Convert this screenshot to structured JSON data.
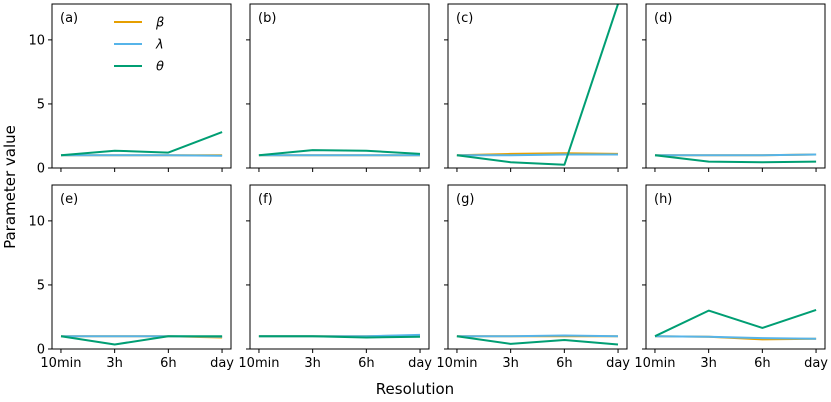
{
  "chart_data": {
    "type": "line",
    "xlabel": "Resolution",
    "ylabel": "Parameter value",
    "categories": [
      "10min",
      "3h",
      "6h",
      "day"
    ],
    "yticks": [
      0,
      5,
      10
    ],
    "ylim": [
      0,
      12.8
    ],
    "legend": {
      "placement": "top-left of panel (a)",
      "entries": [
        {
          "key": "beta",
          "label": "β"
        },
        {
          "key": "lambda",
          "label": "λ"
        },
        {
          "key": "theta",
          "label": "θ"
        }
      ]
    },
    "colors": {
      "beta": "#E69F00",
      "lambda": "#56B4E9",
      "theta": "#009E73"
    },
    "panels": [
      {
        "label": "(a)",
        "series": {
          "beta": [
            1.0,
            1.0,
            1.0,
            1.0
          ],
          "lambda": [
            1.0,
            1.0,
            1.0,
            0.95
          ],
          "theta": [
            1.0,
            1.35,
            1.2,
            2.8
          ]
        }
      },
      {
        "label": "(b)",
        "series": {
          "beta": [
            1.0,
            1.0,
            1.0,
            1.0
          ],
          "lambda": [
            1.0,
            1.0,
            1.0,
            1.0
          ],
          "theta": [
            1.0,
            1.4,
            1.35,
            1.1
          ]
        }
      },
      {
        "label": "(c)",
        "series": {
          "beta": [
            1.0,
            1.1,
            1.15,
            1.1
          ],
          "lambda": [
            1.0,
            1.0,
            1.05,
            1.05
          ],
          "theta": [
            1.0,
            0.45,
            0.25,
            12.8
          ]
        }
      },
      {
        "label": "(d)",
        "series": {
          "beta": [
            1.0,
            1.0,
            1.0,
            1.05
          ],
          "lambda": [
            1.0,
            1.0,
            1.0,
            1.05
          ],
          "theta": [
            1.0,
            0.5,
            0.45,
            0.5
          ]
        }
      },
      {
        "label": "(e)",
        "series": {
          "beta": [
            1.0,
            1.0,
            1.0,
            0.9
          ],
          "lambda": [
            1.0,
            1.0,
            1.0,
            0.95
          ],
          "theta": [
            1.0,
            0.35,
            1.0,
            1.0
          ]
        }
      },
      {
        "label": "(f)",
        "series": {
          "beta": [
            1.0,
            1.0,
            1.0,
            1.05
          ],
          "lambda": [
            1.0,
            1.0,
            1.0,
            1.1
          ],
          "theta": [
            1.0,
            1.0,
            0.9,
            0.95
          ]
        }
      },
      {
        "label": "(g)",
        "series": {
          "beta": [
            1.0,
            1.0,
            1.0,
            1.0
          ],
          "lambda": [
            1.0,
            1.0,
            1.05,
            1.0
          ],
          "theta": [
            1.0,
            0.4,
            0.7,
            0.35
          ]
        }
      },
      {
        "label": "(h)",
        "series": {
          "beta": [
            1.0,
            0.95,
            0.75,
            0.8
          ],
          "lambda": [
            1.0,
            0.95,
            0.85,
            0.8
          ],
          "theta": [
            1.0,
            3.0,
            1.65,
            3.05
          ]
        }
      }
    ]
  }
}
